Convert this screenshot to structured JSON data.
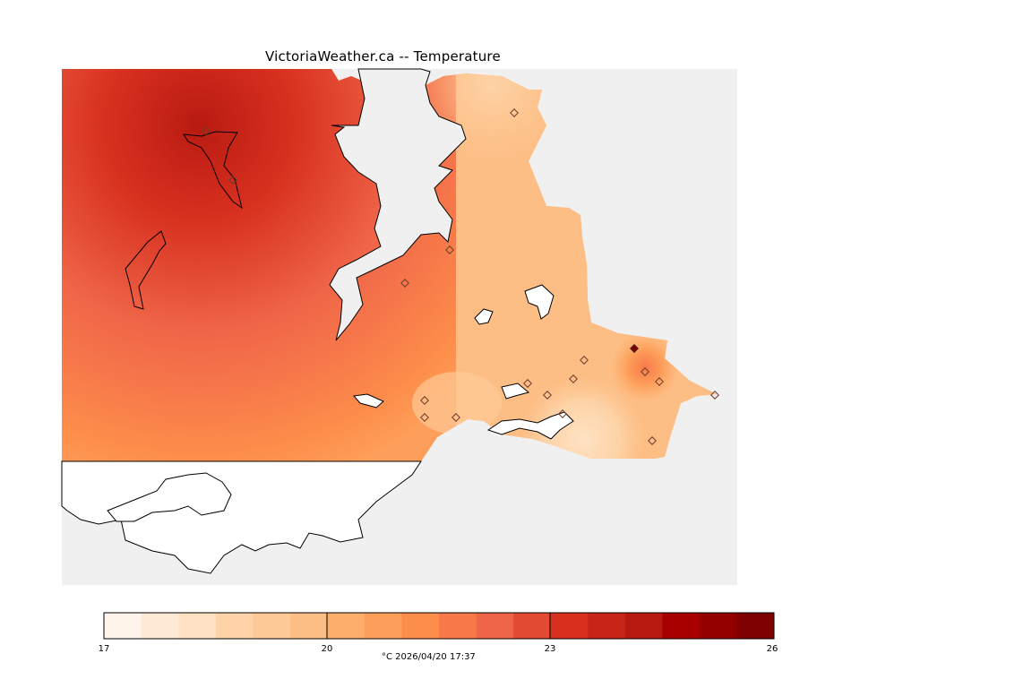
{
  "title": "VictoriaWeather.ca -- Temperature",
  "legend": {
    "min": 17,
    "max": 26,
    "steps": 18,
    "ticks": [
      "17",
      "20",
      "23",
      "26"
    ],
    "caption": "°C  2026/04/20 17:37",
    "colors": [
      "#fff5eb",
      "#fee9d4",
      "#fee2c3",
      "#fdd3a7",
      "#fdc996",
      "#fdbe85",
      "#fdae6b",
      "#fd9f5a",
      "#fd8d4a",
      "#f7794a",
      "#ef6548",
      "#e34a33",
      "#d7301f",
      "#c82519",
      "#b81a10",
      "#a80000",
      "#920000",
      "#7f0000"
    ]
  },
  "colors": {
    "land_background": "#f0f0f0",
    "water": "#ffffff",
    "coast": "#000000"
  }
}
